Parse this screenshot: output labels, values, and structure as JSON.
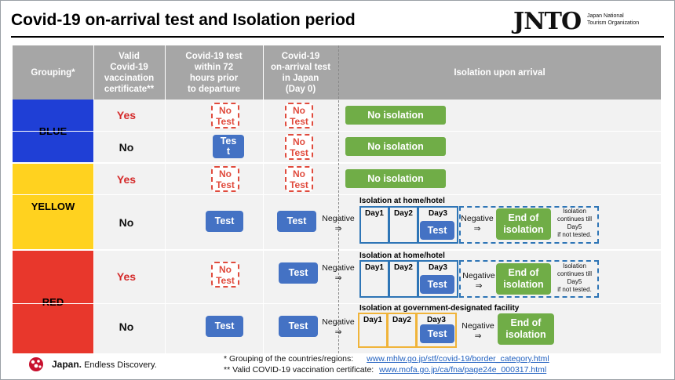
{
  "title": "Covid-19 on-arrival test and Isolation period",
  "logo": {
    "name": "JNTO",
    "line1": "Japan National",
    "line2": "Tourism Organization"
  },
  "headers": {
    "grouping": "Grouping*",
    "vaccination": [
      "Valid",
      "Covid-19",
      "vaccination",
      "certificate**"
    ],
    "pre_test": [
      "Covid-19 test",
      "within 72",
      "hours prior",
      "to departure"
    ],
    "arrival_test": [
      "Covid-19",
      "on-arrival test",
      "in Japan",
      "(Day 0)"
    ],
    "isolation": "Isolation upon arrival"
  },
  "groups": {
    "blue": "BLUE",
    "yellow": "YELLOW",
    "red": "RED"
  },
  "colors": {
    "blue": "#1f3fd6",
    "yellow": "#ffd21f",
    "red": "#e8372c",
    "header": "#a6a6a6",
    "green": "#70ad47",
    "test": "#4472c4"
  },
  "labels": {
    "yes": "Yes",
    "no": "No",
    "no_test": [
      "No",
      "Test"
    ],
    "test": "Test",
    "test_split": [
      "Tes",
      "t"
    ],
    "no_isolation": "No isolation",
    "iso_home": "Isolation at home/hotel",
    "iso_gov": "Isolation at government-designated facility",
    "negative": "Negative",
    "arrow": "⇒",
    "day1": "Day1",
    "day2": "Day2",
    "day3": "Day3",
    "end_of_isolation": [
      "End of",
      "isolation"
    ],
    "continues_note": [
      "Isolation",
      "continues till",
      "Day5",
      "if not tested."
    ]
  },
  "footer": {
    "note1_label": "* Grouping of the countries/regions:",
    "note1_url": "www.mhlw.go.jp/stf/covid-19/border_category.html",
    "note2_label": "** Valid COVID-19 vaccination certificate:",
    "note2_url": "www.mofa.go.jp/ca/fna/page24e_000317.html",
    "brand_bold": "Japan.",
    "brand_rest": "Endless Discovery."
  }
}
